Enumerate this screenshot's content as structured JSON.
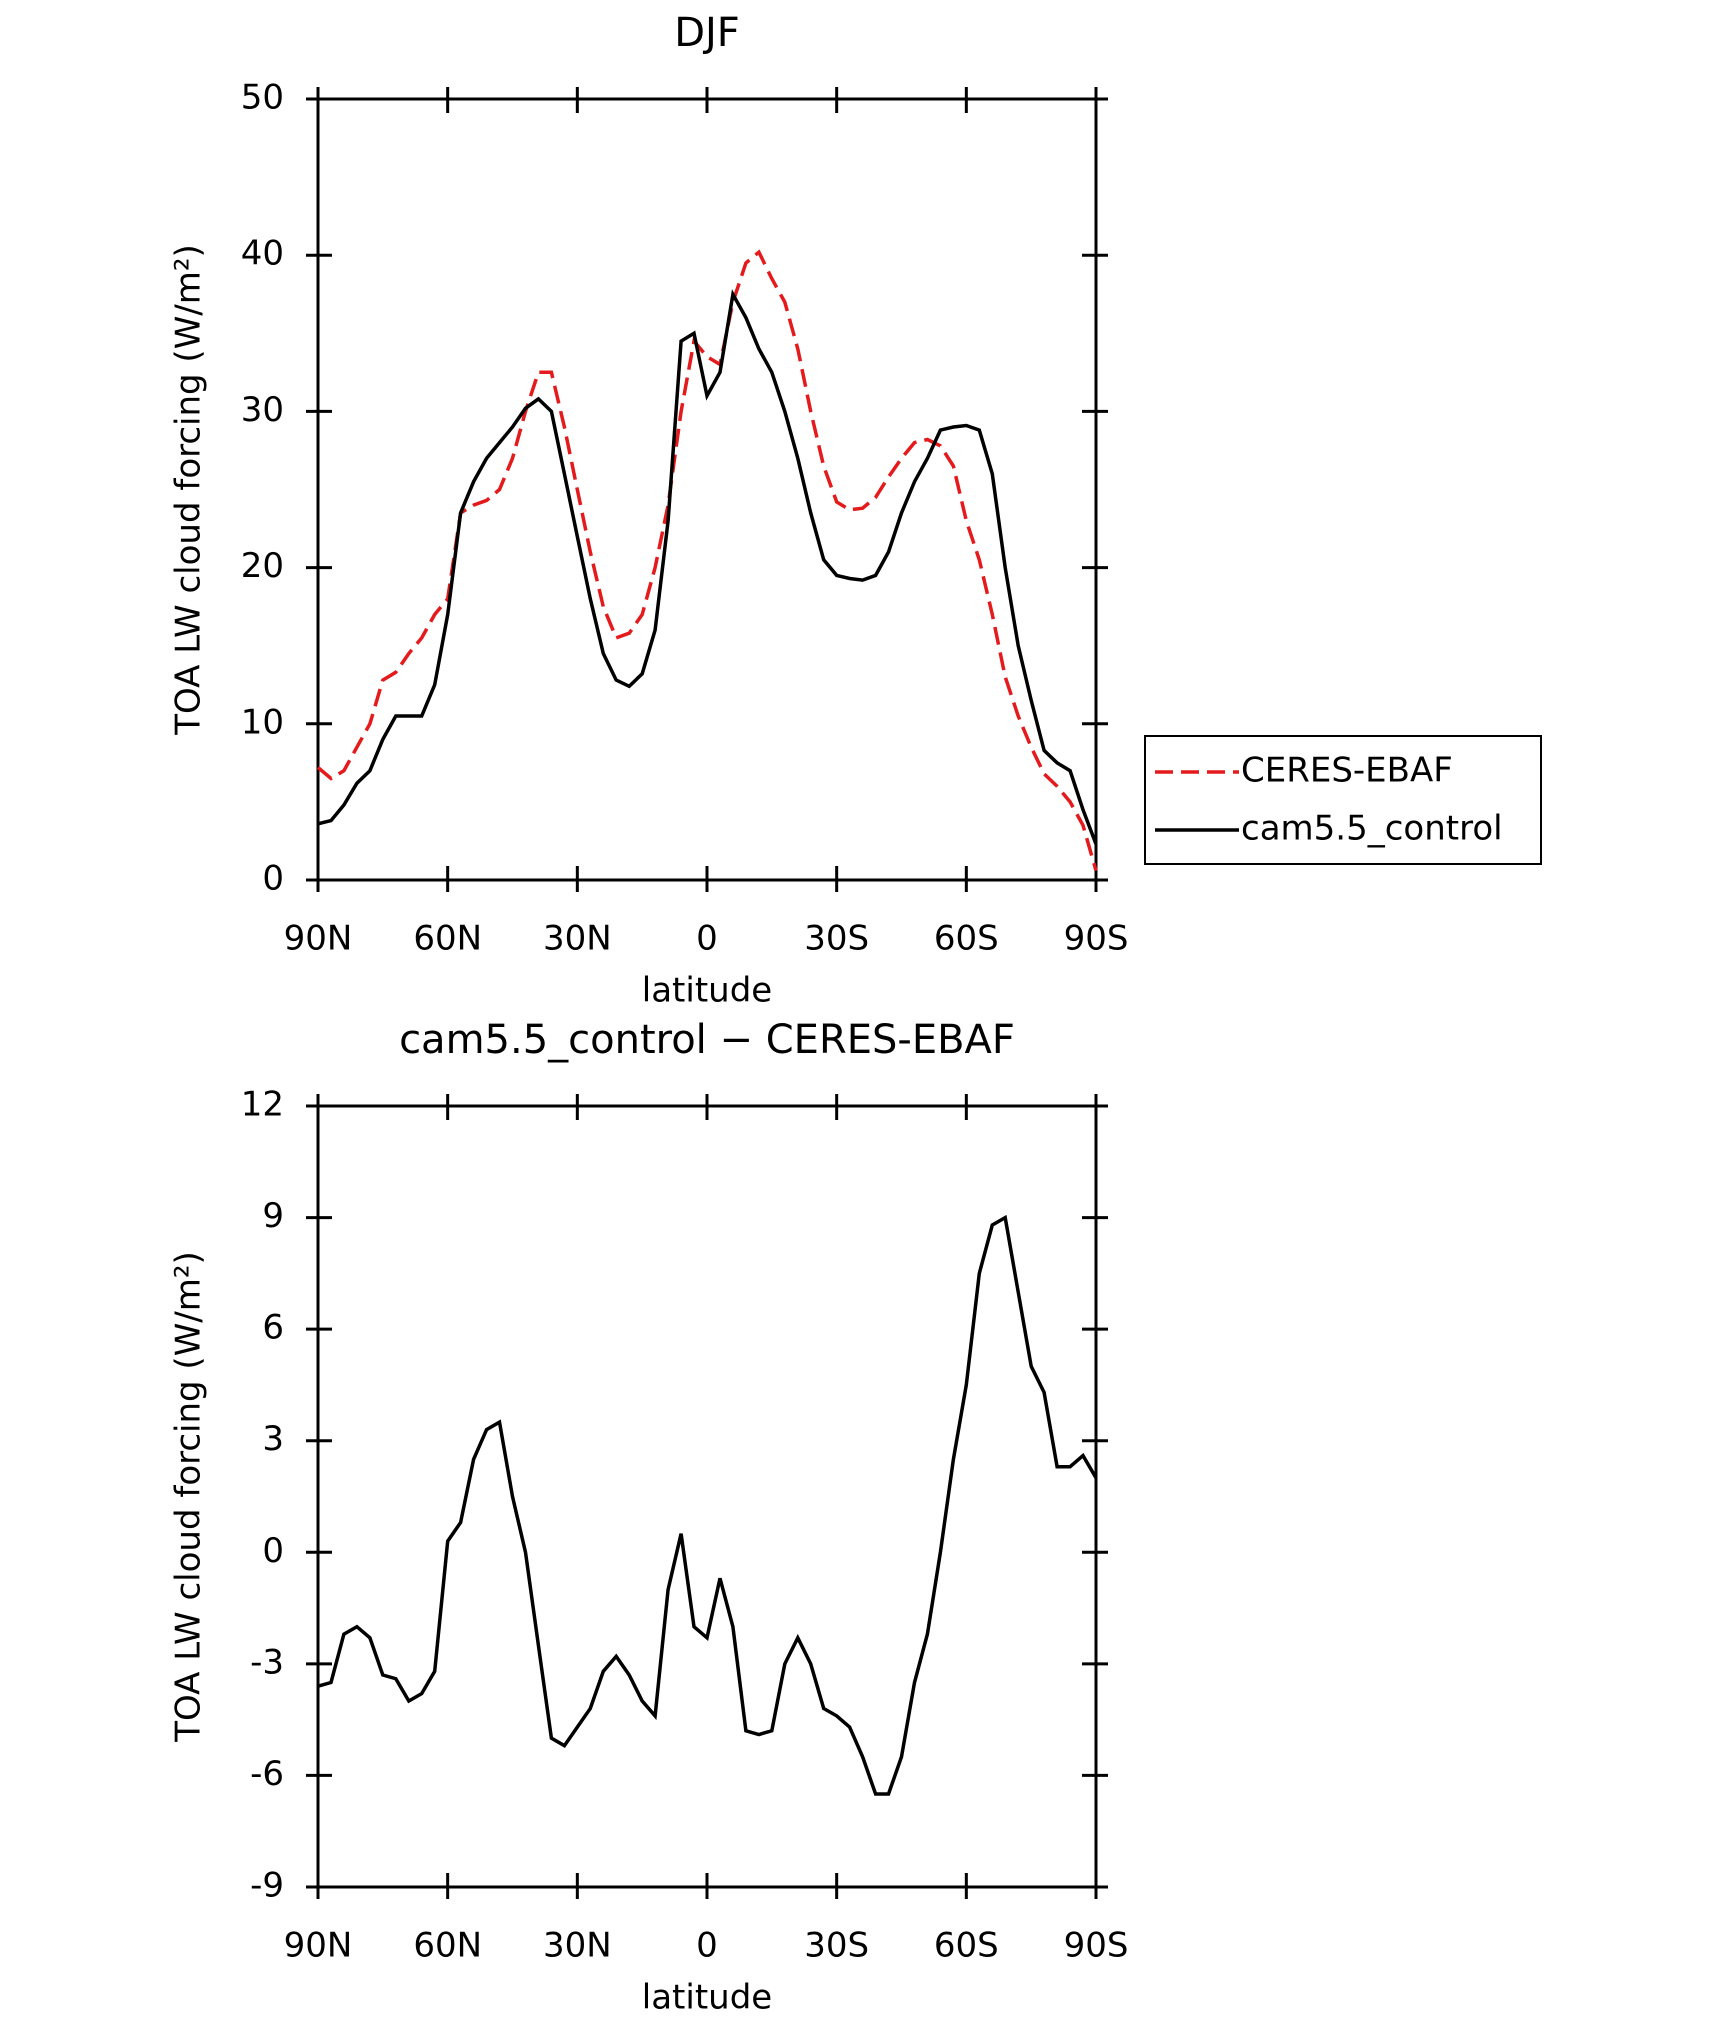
{
  "chart_data": [
    {
      "type": "line",
      "title": "DJF",
      "xlabel": "latitude",
      "ylabel": "TOA LW cloud forcing (W/m²)",
      "x": [
        90,
        87,
        84,
        81,
        78,
        75,
        72,
        69,
        66,
        63,
        60,
        57,
        54,
        51,
        48,
        45,
        42,
        39,
        36,
        33,
        30,
        27,
        24,
        21,
        18,
        15,
        12,
        9,
        6,
        3,
        0,
        -3,
        -6,
        -9,
        -12,
        -15,
        -18,
        -21,
        -24,
        -27,
        -30,
        -33,
        -36,
        -39,
        -42,
        -45,
        -48,
        -51,
        -54,
        -57,
        -60,
        -63,
        -66,
        -69,
        -72,
        -75,
        -78,
        -81,
        -84,
        -87,
        -90
      ],
      "series": [
        {
          "name": "CERES-EBAF",
          "color": "#e41a1c",
          "style": "dashed",
          "values": [
            7.2,
            6.5,
            7.0,
            8.5,
            10,
            12.8,
            13.3,
            14.5,
            15.5,
            17,
            18,
            23.5,
            24,
            24.3,
            25,
            27,
            30,
            32.5,
            32.5,
            29,
            25,
            21,
            17.5,
            15.5,
            15.8,
            17,
            20,
            24,
            30,
            34.5,
            33.5,
            33,
            37,
            39.5,
            40.2,
            38.5,
            37,
            34,
            30,
            26.5,
            24.2,
            23.7,
            23.8,
            24.5,
            25.8,
            27,
            28,
            28.2,
            27.8,
            26.5,
            23,
            20.5,
            17,
            13,
            10.5,
            8.5,
            6.8,
            6,
            5,
            3.5,
            0.6
          ]
        },
        {
          "name": "cam5.5_control",
          "color": "#000000",
          "style": "solid",
          "values": [
            3.6,
            3.8,
            4.8,
            6.2,
            7,
            9,
            10.5,
            10.5,
            10.5,
            12.5,
            17,
            23.5,
            25.5,
            27,
            28,
            29,
            30.2,
            30.8,
            30,
            26,
            22,
            18,
            14.5,
            12.8,
            12.4,
            13.2,
            16,
            23,
            34.5,
            35,
            31,
            32.5,
            37.5,
            36,
            34,
            32.5,
            30,
            27,
            23.5,
            20.5,
            19.5,
            19.3,
            19.2,
            19.5,
            21,
            23.5,
            25.5,
            27,
            28.8,
            29,
            29.1,
            28.8,
            26,
            20,
            15,
            11.5,
            8.3,
            7.5,
            7,
            4.5,
            2.3
          ]
        }
      ],
      "xlim": [
        90,
        -90
      ],
      "xticks": [
        {
          "value": 90,
          "label": "90N"
        },
        {
          "value": 60,
          "label": "60N"
        },
        {
          "value": 30,
          "label": "30N"
        },
        0,
        {
          "value": -30,
          "label": "30S"
        },
        {
          "value": -60,
          "label": "60S"
        },
        {
          "value": -90,
          "label": "90S"
        }
      ],
      "ylim": [
        0,
        50
      ],
      "yticks": [
        0,
        10,
        20,
        30,
        40,
        50
      ],
      "legend": "right"
    },
    {
      "type": "line",
      "title": "cam5.5_control − CERES-EBAF",
      "xlabel": "latitude",
      "ylabel": "TOA LW cloud forcing (W/m²)",
      "x": [
        90,
        87,
        84,
        81,
        78,
        75,
        72,
        69,
        66,
        63,
        60,
        57,
        54,
        51,
        48,
        45,
        42,
        39,
        36,
        33,
        30,
        27,
        24,
        21,
        18,
        15,
        12,
        9,
        6,
        3,
        0,
        -3,
        -6,
        -9,
        -12,
        -15,
        -18,
        -21,
        -24,
        -27,
        -30,
        -33,
        -36,
        -39,
        -42,
        -45,
        -48,
        -51,
        -54,
        -57,
        -60,
        -63,
        -66,
        -69,
        -72,
        -75,
        -78,
        -81,
        -84,
        -87,
        -90
      ],
      "series": [
        {
          "color": "#000000",
          "style": "solid",
          "values": [
            -3.6,
            -3.5,
            -2.2,
            -2.0,
            -2.3,
            -3.3,
            -3.4,
            -4.0,
            -3.8,
            -3.2,
            0.3,
            0.8,
            2.5,
            3.3,
            3.5,
            1.5,
            0,
            -2.5,
            -5.0,
            -5.2,
            -4.7,
            -4.2,
            -3.2,
            -2.8,
            -3.3,
            -4.0,
            -4.4,
            -1.0,
            0.5,
            -2.0,
            -2.3,
            -0.7,
            -2,
            -4.8,
            -4.9,
            -4.8,
            -3.0,
            -2.3,
            -3.0,
            -4.2,
            -4.4,
            -4.7,
            -5.5,
            -6.5,
            -6.5,
            -5.5,
            -3.5,
            -2.2,
            0,
            2.5,
            4.5,
            7.5,
            8.8,
            9.0,
            7,
            5,
            4.3,
            2.3,
            2.3,
            2.6,
            2.0
          ]
        }
      ],
      "xlim": [
        90,
        -90
      ],
      "xticks": [
        {
          "value": 90,
          "label": "90N"
        },
        {
          "value": 60,
          "label": "60N"
        },
        {
          "value": 30,
          "label": "30N"
        },
        0,
        {
          "value": -30,
          "label": "30S"
        },
        {
          "value": -60,
          "label": "60S"
        },
        {
          "value": -90,
          "label": "90S"
        }
      ],
      "ylim": [
        -9,
        12
      ],
      "yticks": [
        -9,
        -6,
        -3,
        0,
        3,
        6,
        9,
        12
      ]
    }
  ]
}
